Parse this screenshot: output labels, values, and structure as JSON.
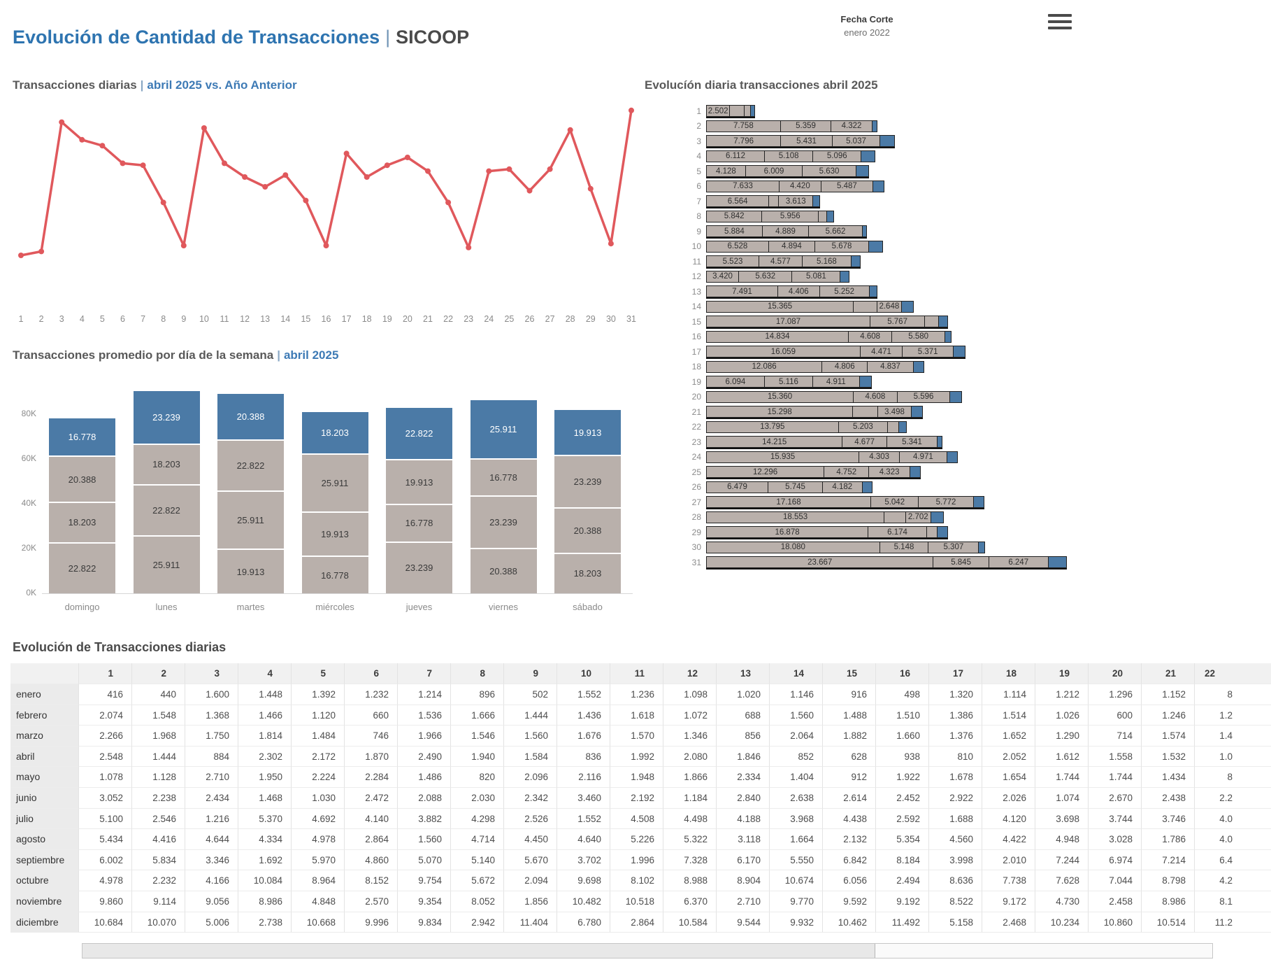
{
  "header": {
    "title_main": "Evolución de Cantidad de Transacciones",
    "title_sep": "|",
    "title_sub": "SICOOP",
    "fecha_corte_label": "Fecha Corte",
    "fecha_corte_value": "enero 2022",
    "menu_icon": "hamburger-icon"
  },
  "colors": {
    "accent_blue_title": "#2e74b0",
    "highlight_blue": "#3d7ab5",
    "line_red": "#e0585c",
    "bar_gray": "#b9b0ab",
    "bar_blue": "#4b7aa6",
    "axis_gray": "#8a8a8a"
  },
  "chart_data": [
    {
      "id": "daily_line",
      "type": "line",
      "title": "Transacciones diarias",
      "title_sep": "|",
      "subtitle": "abril 2025 vs. Año Anterior",
      "color": "#e0585c",
      "grid": "off",
      "legend": "none",
      "x": [
        1,
        2,
        3,
        4,
        5,
        6,
        7,
        8,
        9,
        10,
        11,
        12,
        13,
        14,
        15,
        16,
        17,
        18,
        19,
        20,
        21,
        22,
        23,
        24,
        25,
        26,
        27,
        28,
        29,
        30,
        31
      ],
      "note": "y-axis has no labels in source; values are relative heights (% of plot max)",
      "values_pct_of_max": [
        25,
        27,
        93,
        84,
        81,
        72,
        71,
        52,
        30,
        90,
        72,
        65,
        60,
        66,
        53,
        30,
        77,
        65,
        71,
        75,
        68,
        52,
        29,
        68,
        69,
        58,
        69,
        89,
        59,
        31,
        99
      ]
    },
    {
      "id": "weekday_stack",
      "type": "bar",
      "stacked": true,
      "title": "Transacciones promedio por día de la semana",
      "title_sep": "|",
      "subtitle": "abril 2025",
      "categories": [
        "domingo",
        "lunes",
        "martes",
        "miércoles",
        "jueves",
        "viernes",
        "sábado"
      ],
      "y_ticks": [
        "0K",
        "20K",
        "40K",
        "60K",
        "80K"
      ],
      "ylim": [
        0,
        92000
      ],
      "units": "values in thousands, label uses . as thousands separator",
      "series_bottom_to_top": [
        {
          "name": "segment-1",
          "color": "#b9b0ab",
          "text": "#3a3a3a",
          "values": [
            22.822,
            25.911,
            19.913,
            16.778,
            23.239,
            20.388,
            18.203
          ],
          "labels": [
            "22.822",
            "25.911",
            "19.913",
            "16.778",
            "23.239",
            "20.388",
            "18.203"
          ]
        },
        {
          "name": "segment-2",
          "color": "#b9b0ab",
          "text": "#3a3a3a",
          "values": [
            18.203,
            22.822,
            25.911,
            19.913,
            16.778,
            23.239,
            20.388
          ],
          "labels": [
            "18.203",
            "22.822",
            "25.911",
            "19.913",
            "16.778",
            "23.239",
            "20.388"
          ]
        },
        {
          "name": "segment-3",
          "color": "#b9b0ab",
          "text": "#3a3a3a",
          "values": [
            20.388,
            18.203,
            22.822,
            25.911,
            19.913,
            16.778,
            23.239
          ],
          "labels": [
            "20.388",
            "18.203",
            "22.822",
            "25.911",
            "19.913",
            "16.778",
            "23.239"
          ]
        },
        {
          "name": "segment-top-blue",
          "color": "#4b7aa6",
          "text": "#ffffff",
          "values": [
            16.778,
            23.239,
            20.388,
            18.203,
            22.822,
            25.911,
            19.913
          ],
          "labels": [
            "16.778",
            "23.239",
            "20.388",
            "18.203",
            "22.822",
            "25.911",
            "19.913"
          ]
        }
      ]
    },
    {
      "id": "daily_stack",
      "type": "bar",
      "orientation": "horizontal",
      "stacked": true,
      "title": "Evolucíón diaria transacciones abril 2025",
      "units": "values in thousands; unlabeled gray and trailing blue segment widths estimated from pixels",
      "gray_color": "#b9b0ab",
      "blue_color": "#4b7aa6",
      "rows": [
        {
          "day": 1,
          "values": [
            2.502,
            1.6,
            0.7
          ],
          "labels": [
            "2.502",
            "",
            ""
          ],
          "blue": 0.5
        },
        {
          "day": 2,
          "values": [
            7.758,
            5.359,
            4.322
          ],
          "labels": [
            "7.758",
            "5.359",
            "4.322"
          ],
          "blue": 0.6
        },
        {
          "day": 3,
          "values": [
            7.796,
            5.431,
            5.037
          ],
          "labels": [
            "7.796",
            "5.431",
            "5.037"
          ],
          "blue": 1.6
        },
        {
          "day": 4,
          "values": [
            6.112,
            5.108,
            5.096
          ],
          "labels": [
            "6.112",
            "5.108",
            "5.096"
          ],
          "blue": 1.5
        },
        {
          "day": 5,
          "values": [
            4.128,
            6.009,
            5.63
          ],
          "labels": [
            "4.128",
            "6.009",
            "5.630"
          ],
          "blue": 1.4
        },
        {
          "day": 6,
          "values": [
            7.633,
            4.42,
            5.487
          ],
          "labels": [
            "7.633",
            "4.420",
            "5.487"
          ],
          "blue": 1.2
        },
        {
          "day": 7,
          "values": [
            6.564,
            1.1,
            3.613
          ],
          "labels": [
            "6.564",
            "",
            "3.613"
          ],
          "blue": 0.8
        },
        {
          "day": 8,
          "values": [
            5.842,
            5.956,
            0.9
          ],
          "labels": [
            "5.842",
            "5.956",
            ""
          ],
          "blue": 0.8
        },
        {
          "day": 9,
          "values": [
            5.884,
            4.889,
            5.662
          ],
          "labels": [
            "5.884",
            "4.889",
            "5.662"
          ],
          "blue": 0.5
        },
        {
          "day": 10,
          "values": [
            6.528,
            4.894,
            5.678
          ],
          "labels": [
            "6.528",
            "4.894",
            "5.678"
          ],
          "blue": 1.5
        },
        {
          "day": 11,
          "values": [
            5.523,
            4.577,
            5.168
          ],
          "labels": [
            "5.523",
            "4.577",
            "5.168"
          ],
          "blue": 1.0
        },
        {
          "day": 12,
          "values": [
            3.42,
            5.632,
            5.081
          ],
          "labels": [
            "3.420",
            "5.632",
            "5.081"
          ],
          "blue": 1.0
        },
        {
          "day": 13,
          "values": [
            7.491,
            4.406,
            5.252
          ],
          "labels": [
            "7.491",
            "4.406",
            "5.252"
          ],
          "blue": 0.9
        },
        {
          "day": 14,
          "values": [
            15.365,
            2.5,
            2.648
          ],
          "labels": [
            "15.365",
            "",
            "2.648"
          ],
          "blue": 1.3
        },
        {
          "day": 15,
          "values": [
            17.087,
            5.767,
            1.5
          ],
          "labels": [
            "17.087",
            "5.767",
            ""
          ],
          "blue": 1.0
        },
        {
          "day": 16,
          "values": [
            14.834,
            4.608,
            5.58
          ],
          "labels": [
            "14.834",
            "4.608",
            "5.580"
          ],
          "blue": 0.7
        },
        {
          "day": 17,
          "values": [
            16.059,
            4.471,
            5.371
          ],
          "labels": [
            "16.059",
            "4.471",
            "5.371"
          ],
          "blue": 1.3
        },
        {
          "day": 18,
          "values": [
            12.086,
            4.806,
            4.837
          ],
          "labels": [
            "12.086",
            "4.806",
            "4.837"
          ],
          "blue": 1.2
        },
        {
          "day": 19,
          "values": [
            6.094,
            5.116,
            4.911
          ],
          "labels": [
            "6.094",
            "5.116",
            "4.911"
          ],
          "blue": 1.3
        },
        {
          "day": 20,
          "values": [
            15.36,
            4.608,
            5.596
          ],
          "labels": [
            "15.360",
            "4.608",
            "5.596"
          ],
          "blue": 1.3
        },
        {
          "day": 21,
          "values": [
            15.298,
            2.7,
            3.498
          ],
          "labels": [
            "15.298",
            "",
            "3.498"
          ],
          "blue": 1.3
        },
        {
          "day": 22,
          "values": [
            13.795,
            5.203,
            1.2
          ],
          "labels": [
            "13.795",
            "5.203",
            ""
          ],
          "blue": 0.9
        },
        {
          "day": 23,
          "values": [
            14.215,
            4.677,
            5.341
          ],
          "labels": [
            "14.215",
            "4.677",
            "5.341"
          ],
          "blue": 0.6
        },
        {
          "day": 24,
          "values": [
            15.935,
            4.303,
            4.971
          ],
          "labels": [
            "15.935",
            "4.303",
            "4.971"
          ],
          "blue": 1.2
        },
        {
          "day": 25,
          "values": [
            12.296,
            4.752,
            4.323
          ],
          "labels": [
            "12.296",
            "4.752",
            "4.323"
          ],
          "blue": 1.2
        },
        {
          "day": 26,
          "values": [
            6.479,
            5.745,
            4.182
          ],
          "labels": [
            "6.479",
            "5.745",
            "4.182"
          ],
          "blue": 1.1
        },
        {
          "day": 27,
          "values": [
            17.168,
            5.042,
            5.772
          ],
          "labels": [
            "17.168",
            "5.042",
            "5.772"
          ],
          "blue": 1.2
        },
        {
          "day": 28,
          "values": [
            18.553,
            2.3,
            2.702
          ],
          "labels": [
            "18.553",
            "",
            "2.702"
          ],
          "blue": 1.4
        },
        {
          "day": 29,
          "values": [
            16.878,
            6.174,
            1.2
          ],
          "labels": [
            "16.878",
            "6.174",
            ""
          ],
          "blue": 1.1
        },
        {
          "day": 30,
          "values": [
            18.08,
            5.148,
            5.307
          ],
          "labels": [
            "18.080",
            "5.148",
            "5.307"
          ],
          "blue": 0.7
        },
        {
          "day": 31,
          "values": [
            23.667,
            5.845,
            6.247
          ],
          "labels": [
            "23.667",
            "5.845",
            "6.247"
          ],
          "blue": 2.0
        }
      ]
    },
    {
      "id": "daily_table",
      "type": "table",
      "title": "Evolución de Transacciones diarias",
      "note": "column 22 is clipped at the right edge of the viewport; partial visible text kept as-is",
      "columns": [
        "1",
        "2",
        "3",
        "4",
        "5",
        "6",
        "7",
        "8",
        "9",
        "10",
        "11",
        "12",
        "13",
        "14",
        "15",
        "16",
        "17",
        "18",
        "19",
        "20",
        "21",
        "22"
      ],
      "rows": [
        {
          "label": "enero",
          "values": [
            "416",
            "440",
            "1.600",
            "1.448",
            "1.392",
            "1.232",
            "1.214",
            "896",
            "502",
            "1.552",
            "1.236",
            "1.098",
            "1.020",
            "1.146",
            "916",
            "498",
            "1.320",
            "1.114",
            "1.212",
            "1.296",
            "1.152",
            "8"
          ]
        },
        {
          "label": "febrero",
          "values": [
            "2.074",
            "1.548",
            "1.368",
            "1.466",
            "1.120",
            "660",
            "1.536",
            "1.666",
            "1.444",
            "1.436",
            "1.618",
            "1.072",
            "688",
            "1.560",
            "1.488",
            "1.510",
            "1.386",
            "1.514",
            "1.026",
            "600",
            "1.246",
            "1.2"
          ]
        },
        {
          "label": "marzo",
          "values": [
            "2.266",
            "1.968",
            "1.750",
            "1.814",
            "1.484",
            "746",
            "1.966",
            "1.546",
            "1.560",
            "1.676",
            "1.570",
            "1.346",
            "856",
            "2.064",
            "1.882",
            "1.660",
            "1.376",
            "1.652",
            "1.290",
            "714",
            "1.574",
            "1.4"
          ]
        },
        {
          "label": "abril",
          "values": [
            "2.548",
            "1.444",
            "884",
            "2.302",
            "2.172",
            "1.870",
            "2.490",
            "1.940",
            "1.584",
            "836",
            "1.992",
            "2.080",
            "1.846",
            "852",
            "628",
            "938",
            "810",
            "2.052",
            "1.612",
            "1.558",
            "1.532",
            "1.0"
          ]
        },
        {
          "label": "mayo",
          "values": [
            "1.078",
            "1.128",
            "2.710",
            "1.950",
            "2.224",
            "2.284",
            "1.486",
            "820",
            "2.096",
            "2.116",
            "1.948",
            "1.866",
            "2.334",
            "1.404",
            "912",
            "1.922",
            "1.678",
            "1.654",
            "1.744",
            "1.744",
            "1.434",
            "8"
          ]
        },
        {
          "label": "junio",
          "values": [
            "3.052",
            "2.238",
            "2.434",
            "1.468",
            "1.030",
            "2.472",
            "2.088",
            "2.030",
            "2.342",
            "3.460",
            "2.192",
            "1.184",
            "2.840",
            "2.638",
            "2.614",
            "2.452",
            "2.922",
            "2.026",
            "1.074",
            "2.670",
            "2.438",
            "2.2"
          ]
        },
        {
          "label": "julio",
          "values": [
            "5.100",
            "2.546",
            "1.216",
            "5.370",
            "4.692",
            "4.140",
            "3.882",
            "4.298",
            "2.526",
            "1.552",
            "4.508",
            "4.498",
            "4.188",
            "3.968",
            "4.438",
            "2.592",
            "1.688",
            "4.120",
            "3.698",
            "3.744",
            "3.746",
            "4.0"
          ]
        },
        {
          "label": "agosto",
          "values": [
            "5.434",
            "4.416",
            "4.644",
            "4.334",
            "4.978",
            "2.864",
            "1.560",
            "4.714",
            "4.450",
            "4.640",
            "5.226",
            "5.322",
            "3.118",
            "1.664",
            "2.132",
            "5.354",
            "4.560",
            "4.422",
            "4.948",
            "3.028",
            "1.786",
            "4.0"
          ]
        },
        {
          "label": "septiembre",
          "values": [
            "6.002",
            "5.834",
            "3.346",
            "1.692",
            "5.970",
            "4.860",
            "5.070",
            "5.140",
            "5.670",
            "3.702",
            "1.996",
            "7.328",
            "6.170",
            "5.550",
            "6.842",
            "8.184",
            "3.998",
            "2.010",
            "7.244",
            "6.974",
            "7.214",
            "6.4"
          ]
        },
        {
          "label": "octubre",
          "values": [
            "4.978",
            "2.232",
            "4.166",
            "10.084",
            "8.964",
            "8.152",
            "9.754",
            "5.672",
            "2.094",
            "9.698",
            "8.102",
            "8.988",
            "8.904",
            "10.674",
            "6.056",
            "2.494",
            "8.636",
            "7.738",
            "7.628",
            "7.044",
            "8.798",
            "4.2"
          ]
        },
        {
          "label": "noviembre",
          "values": [
            "9.860",
            "9.114",
            "9.056",
            "8.986",
            "4.848",
            "2.570",
            "9.354",
            "8.052",
            "1.856",
            "10.482",
            "10.518",
            "6.370",
            "2.710",
            "9.770",
            "9.592",
            "9.192",
            "8.522",
            "9.172",
            "4.730",
            "2.458",
            "8.986",
            "8.1"
          ]
        },
        {
          "label": "diciembre",
          "values": [
            "10.684",
            "10.070",
            "5.006",
            "2.738",
            "10.668",
            "9.996",
            "9.834",
            "2.942",
            "11.404",
            "6.780",
            "2.864",
            "10.584",
            "9.544",
            "9.932",
            "10.462",
            "11.492",
            "5.158",
            "2.468",
            "10.234",
            "10.860",
            "10.514",
            "11.2"
          ]
        }
      ]
    }
  ]
}
